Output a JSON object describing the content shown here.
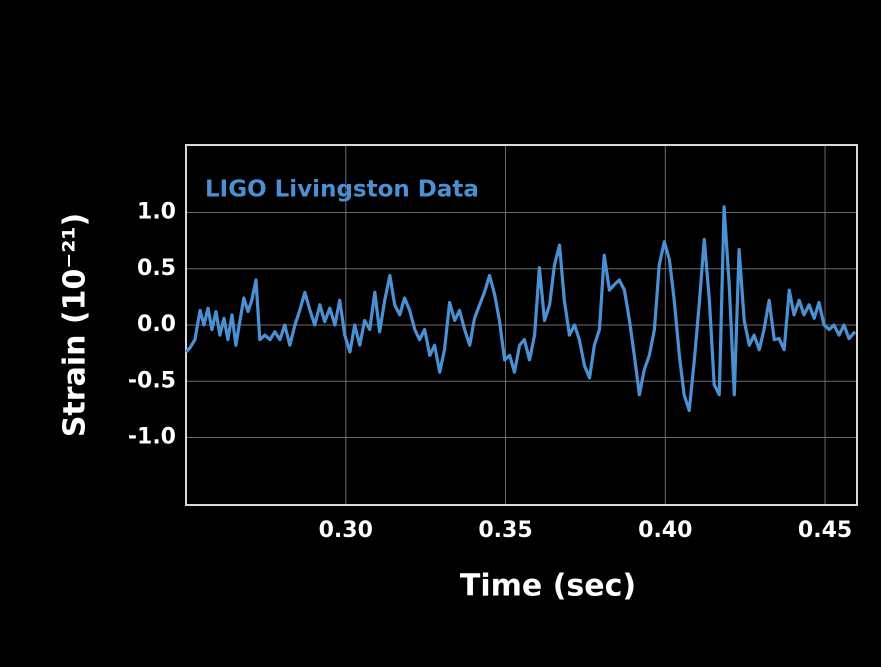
{
  "chart_data": {
    "type": "line",
    "annotation": "LIGO Livingston Data",
    "x_label": "Time (sec)",
    "y_label": "Strain (10⁻²¹)",
    "color": "#4a90d2",
    "grid": true,
    "xlim": [
      0.25,
      0.46
    ],
    "ylim": [
      -1.6,
      1.6
    ],
    "xticks": [
      {
        "value": 0.3,
        "label": "0.30"
      },
      {
        "value": 0.35,
        "label": "0.35"
      },
      {
        "value": 0.4,
        "label": "0.40"
      },
      {
        "value": 0.45,
        "label": "0.45"
      }
    ],
    "yticks": [
      {
        "value": 1,
        "label": "1.0"
      },
      {
        "value": 0.5,
        "label": "0.5"
      },
      {
        "value": 0,
        "label": "0.0"
      },
      {
        "value": -0.5,
        "label": "-0.5"
      },
      {
        "value": -1,
        "label": "-1.0"
      }
    ],
    "x": [
      0.25,
      0.2513,
      0.2528,
      0.2544,
      0.2556,
      0.2569,
      0.2581,
      0.2594,
      0.2606,
      0.2619,
      0.2631,
      0.2644,
      0.2656,
      0.2669,
      0.2681,
      0.2694,
      0.2706,
      0.2719,
      0.2731,
      0.2747,
      0.2763,
      0.2778,
      0.2794,
      0.2809,
      0.2825,
      0.2841,
      0.2856,
      0.2872,
      0.2888,
      0.2903,
      0.2919,
      0.2934,
      0.295,
      0.2966,
      0.2981,
      0.2997,
      0.3013,
      0.3028,
      0.3044,
      0.3059,
      0.3075,
      0.3091,
      0.3106,
      0.3122,
      0.3138,
      0.3153,
      0.3169,
      0.3184,
      0.32,
      0.3216,
      0.3231,
      0.3247,
      0.3263,
      0.3278,
      0.3294,
      0.3309,
      0.3325,
      0.3341,
      0.3356,
      0.3372,
      0.3388,
      0.3403,
      0.3419,
      0.3434,
      0.345,
      0.3466,
      0.3481,
      0.3497,
      0.3513,
      0.3528,
      0.3544,
      0.3559,
      0.3575,
      0.3591,
      0.3606,
      0.3622,
      0.3638,
      0.3653,
      0.3669,
      0.3684,
      0.37,
      0.3716,
      0.3731,
      0.3747,
      0.3763,
      0.3778,
      0.3794,
      0.3809,
      0.3825,
      0.3841,
      0.3856,
      0.3872,
      0.3888,
      0.3903,
      0.3919,
      0.3934,
      0.395,
      0.3966,
      0.3981,
      0.3997,
      0.4013,
      0.4028,
      0.4044,
      0.4059,
      0.4075,
      0.4091,
      0.4106,
      0.4122,
      0.4138,
      0.4153,
      0.4169,
      0.4184,
      0.42,
      0.4216,
      0.4231,
      0.4247,
      0.4263,
      0.4278,
      0.4294,
      0.4309,
      0.4325,
      0.4341,
      0.4356,
      0.4372,
      0.4388,
      0.4403,
      0.4419,
      0.4434,
      0.445,
      0.4466,
      0.4481,
      0.4497,
      0.4513,
      0.4528,
      0.4544,
      0.4559,
      0.4575,
      0.4594
    ],
    "values": [
      -0.24,
      -0.2,
      -0.13,
      0.13,
      0,
      0.15,
      -0.04,
      0.12,
      -0.09,
      0.06,
      -0.13,
      0.09,
      -0.18,
      0.04,
      0.24,
      0.12,
      0.22,
      0.4,
      -0.13,
      -0.09,
      -0.13,
      -0.06,
      -0.13,
      0,
      -0.18,
      0,
      0.13,
      0.29,
      0.13,
      0,
      0.18,
      0.03,
      0.15,
      0,
      0.22,
      -0.09,
      -0.24,
      0,
      -0.18,
      0.04,
      -0.04,
      0.29,
      -0.06,
      0.22,
      0.44,
      0.18,
      0.09,
      0.24,
      0.13,
      -0.04,
      -0.13,
      -0.04,
      -0.27,
      -0.18,
      -0.42,
      -0.22,
      0.2,
      0.04,
      0.13,
      -0.04,
      -0.18,
      0.06,
      0.18,
      0.29,
      0.44,
      0.27,
      0.04,
      -0.31,
      -0.27,
      -0.42,
      -0.18,
      -0.13,
      -0.31,
      -0.09,
      0.51,
      0.04,
      0.18,
      0.53,
      0.71,
      0.22,
      -0.09,
      0,
      -0.13,
      -0.36,
      -0.47,
      -0.18,
      -0.04,
      0.62,
      0.31,
      0.36,
      0.4,
      0.31,
      0.04,
      -0.27,
      -0.62,
      -0.4,
      -0.27,
      -0.04,
      0.53,
      0.74,
      0.58,
      0.22,
      -0.27,
      -0.62,
      -0.76,
      -0.31,
      0.18,
      0.76,
      0.22,
      -0.53,
      -0.62,
      1.05,
      0.36,
      -0.62,
      0.67,
      0.04,
      -0.18,
      -0.09,
      -0.22,
      -0.04,
      0.22,
      -0.13,
      -0.12,
      -0.22,
      0.31,
      0.09,
      0.22,
      0.09,
      0.18,
      0.06,
      0.2,
      0,
      -0.04,
      0,
      -0.09,
      0,
      -0.12,
      -0.06
    ]
  }
}
